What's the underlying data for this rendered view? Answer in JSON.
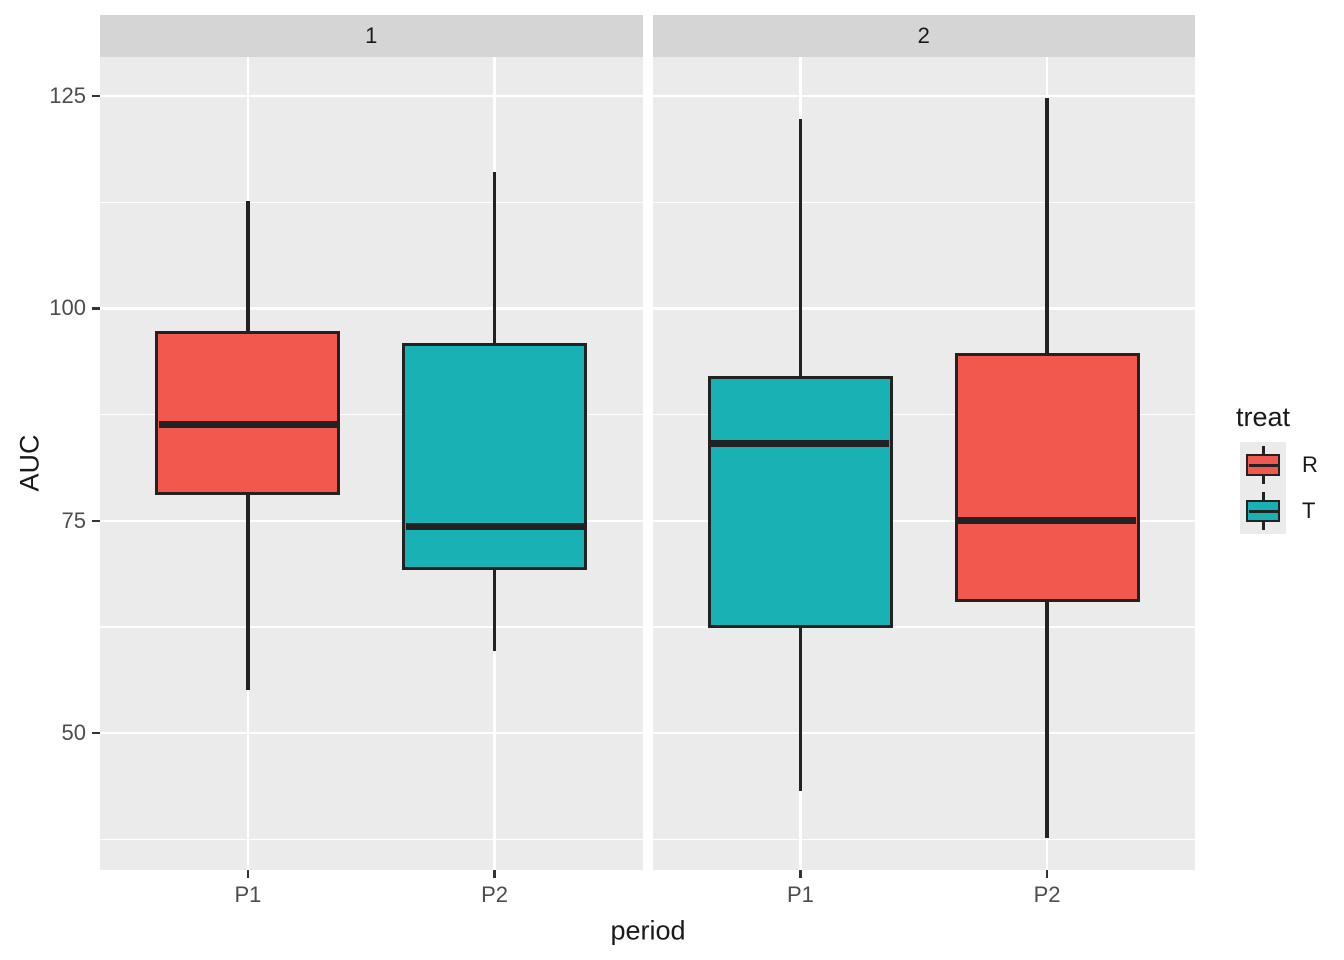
{
  "chart_data": {
    "type": "boxplot",
    "title": "",
    "xlabel": "period",
    "ylabel": "AUC",
    "categories": [
      "P1",
      "P2"
    ],
    "y_axis": {
      "ticks": [
        125,
        100,
        75,
        50
      ],
      "minor_ticks": [
        112.5,
        87.5,
        62.5,
        37.5
      ],
      "ylim": [
        33.9,
        129.6
      ]
    },
    "legend": {
      "title": "treat",
      "entries": [
        {
          "label": "R",
          "color": "#f3584e"
        },
        {
          "label": "T",
          "color": "#18b2b4"
        }
      ]
    },
    "facets": [
      {
        "label": "1",
        "boxes": [
          {
            "category": "P1",
            "treat": "R",
            "color": "#f3584e",
            "whisker_low": 55.1,
            "q1": 78.0,
            "median": 86.3,
            "q3": 97.4,
            "whisker_high": 112.7
          },
          {
            "category": "P2",
            "treat": "T",
            "color": "#18b2b4",
            "whisker_low": 59.7,
            "q1": 69.2,
            "median": 74.3,
            "q3": 95.9,
            "whisker_high": 116.1
          }
        ]
      },
      {
        "label": "2",
        "boxes": [
          {
            "category": "P1",
            "treat": "T",
            "color": "#18b2b4",
            "whisker_low": 43.2,
            "q1": 62.4,
            "median": 84.1,
            "q3": 92.1,
            "whisker_high": 122.3
          },
          {
            "category": "P2",
            "treat": "R",
            "color": "#f3584e",
            "whisker_low": 37.7,
            "q1": 65.5,
            "median": 75.0,
            "q3": 94.7,
            "whisker_high": 124.8
          }
        ]
      }
    ],
    "style": {
      "panel_bg": "#ebebeb",
      "strip_bg": "#d5d5d5",
      "grid_color": "#ffffff",
      "box_border": "#222222",
      "tick_mark_color": "#333333",
      "text_color": "#1a1a1a",
      "tick_text_color": "#4d4d4d"
    }
  }
}
